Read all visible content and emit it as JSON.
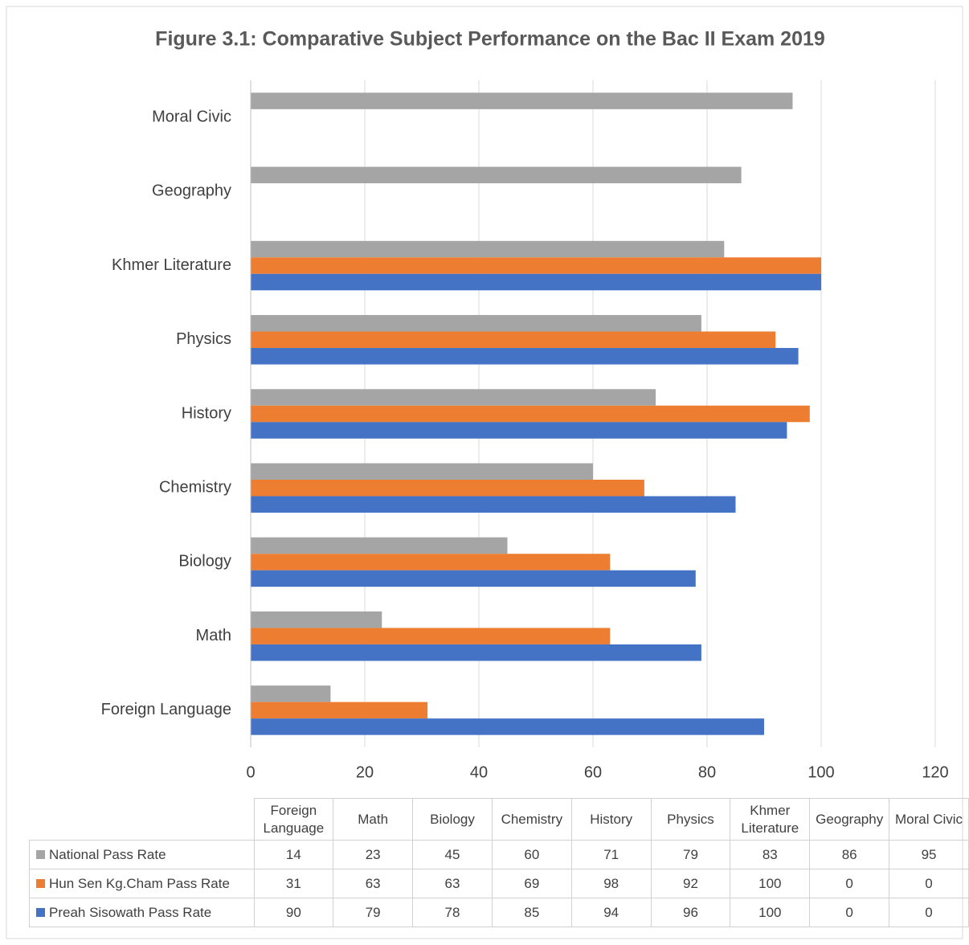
{
  "chart_data": {
    "type": "bar",
    "orientation": "horizontal",
    "title": "Figure 3.1: Comparative Subject Performance on the Bac II Exam 2019",
    "categories": [
      "Foreign Language",
      "Math",
      "Biology",
      "Chemistry",
      "History",
      "Physics",
      "Khmer Literature",
      "Geography",
      "Moral Civic"
    ],
    "series": [
      {
        "name": "National Pass Rate",
        "color": "#a5a5a5",
        "values": [
          14,
          23,
          45,
          60,
          71,
          79,
          83,
          86,
          95
        ]
      },
      {
        "name": "Hun Sen Kg.Cham Pass Rate",
        "color": "#ed7d31",
        "values": [
          31,
          63,
          63,
          69,
          98,
          92,
          100,
          0,
          0
        ]
      },
      {
        "name": "Preah Sisowath Pass Rate",
        "color": "#4472c4",
        "values": [
          90,
          79,
          78,
          85,
          94,
          96,
          100,
          0,
          0
        ]
      }
    ],
    "xlim": [
      0,
      120
    ],
    "xticks": [
      0,
      20,
      40,
      60,
      80,
      100,
      120
    ],
    "grid": true,
    "data_table": true
  }
}
